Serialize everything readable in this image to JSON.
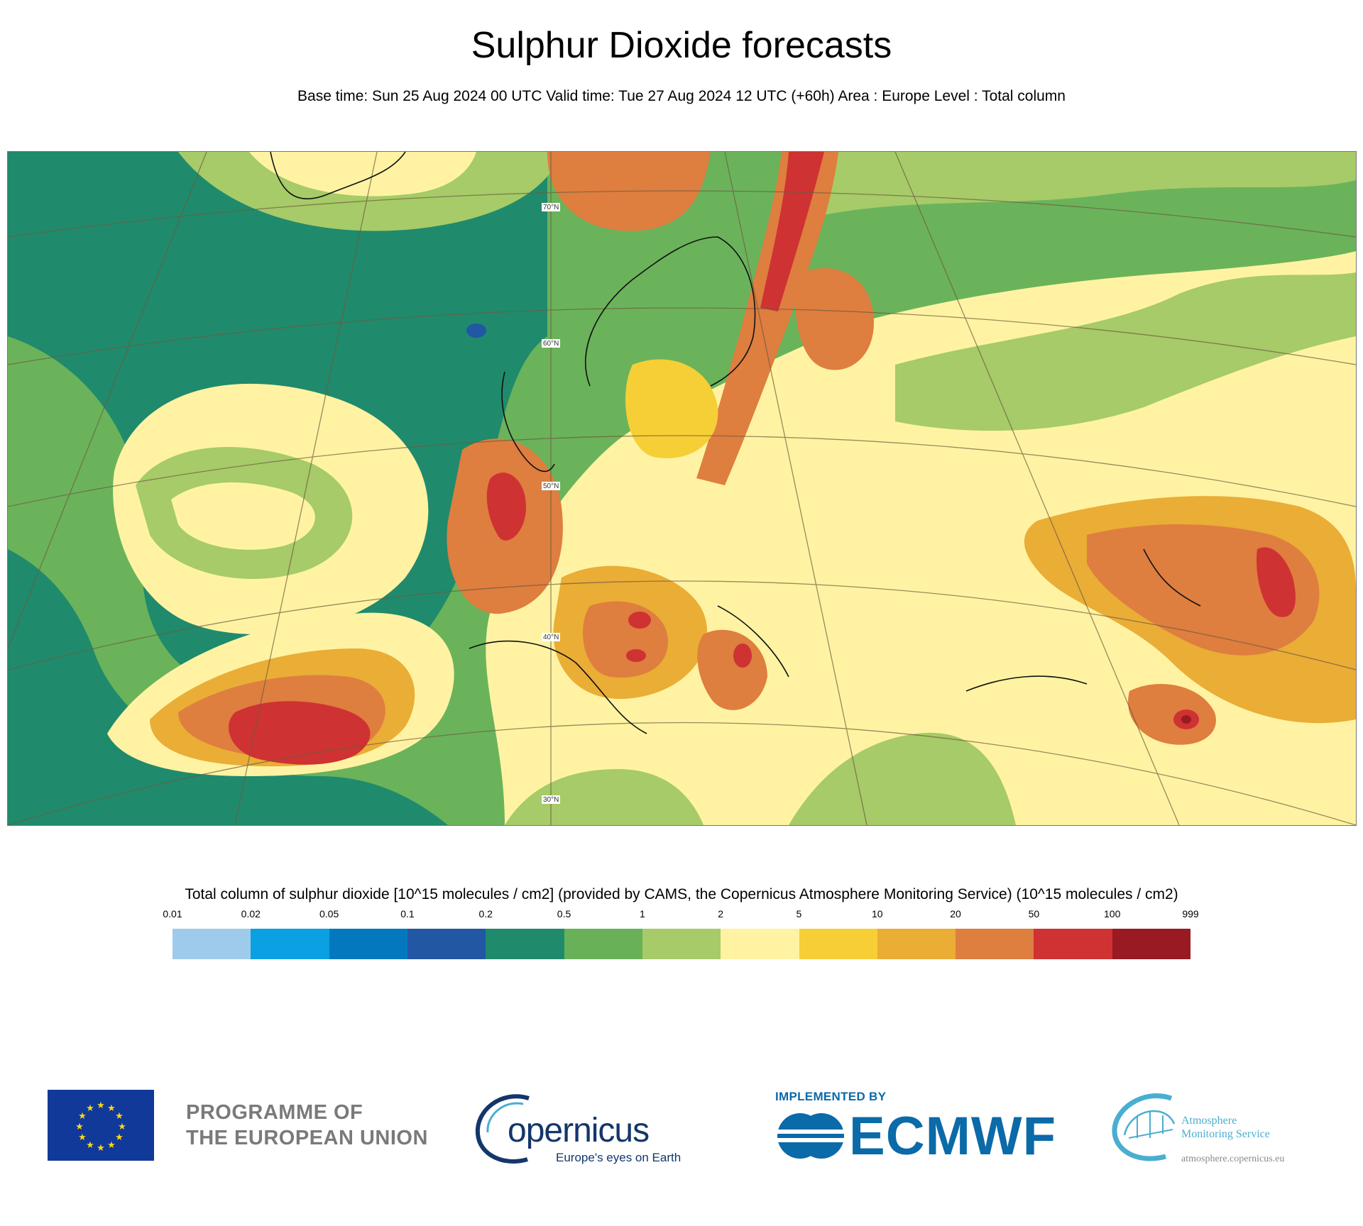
{
  "title": "Sulphur Dioxide forecasts",
  "subtitle": "Base time: Sun 25 Aug 2024 00 UTC Valid time: Tue 27 Aug 2024 12 UTC (+60h) Area : Europe Level : Total column",
  "map": {
    "lat_labels": [
      "70°N",
      "60°N",
      "50°N",
      "40°N",
      "30°N"
    ]
  },
  "legend": {
    "title": "Total column of sulphur dioxide [10^15 molecules / cm2] (provided by CAMS, the Copernicus Atmosphere Monitoring Service) (10^15 molecules / cm2)",
    "ticks": [
      "0.01",
      "0.02",
      "0.05",
      "0.1",
      "0.2",
      "0.5",
      "1",
      "2",
      "5",
      "10",
      "20",
      "50",
      "100",
      "999"
    ],
    "colors": [
      "#9ecbea",
      "#0aa0e2",
      "#0478bf",
      "#2257a3",
      "#208a6c",
      "#68b158",
      "#a6cb68",
      "#fff3a3",
      "#f6cf36",
      "#eaad36",
      "#de7e3f",
      "#cf3232",
      "#991a22"
    ]
  },
  "footer": {
    "eu_line1": "PROGRAMME OF",
    "eu_line2": "THE EUROPEAN UNION",
    "copernicus": "opernicus",
    "copernicus_tag": "Europe's eyes on Earth",
    "implemented_by": "IMPLEMENTED BY",
    "ecmwf": "ECMWF",
    "ams_line1": "Atmosphere",
    "ams_line2": "Monitoring Service",
    "ams_url": "atmosphere.copernicus.eu"
  }
}
